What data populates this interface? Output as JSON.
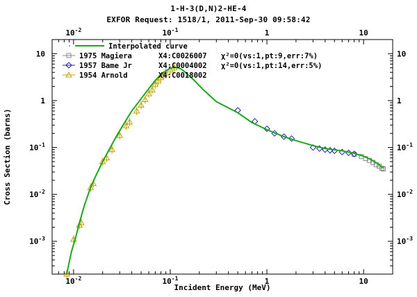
{
  "chart_data": {
    "type": "scatter",
    "title": "1-H-3(D,N)2-HE-4",
    "subtitle": "EXFOR Request: 1518/1, 2011-Sep-30 09:58:42",
    "xlabel": "Incident Energy (MeV)",
    "ylabel": "Cross Section (barns)",
    "x_scale": "log",
    "y_scale": "log",
    "xlim": [
      0.006,
      20
    ],
    "ylim": [
      0.0002,
      20
    ],
    "x_ticks": [
      {
        "value": 0.01,
        "base": "10",
        "exp": "-2"
      },
      {
        "value": 0.1,
        "base": "10",
        "exp": "-1"
      },
      {
        "value": 1,
        "base": "1",
        "exp": ""
      },
      {
        "value": 10,
        "base": "10",
        "exp": ""
      }
    ],
    "y_ticks": [
      {
        "value": 0.001,
        "base": "10",
        "exp": "-3"
      },
      {
        "value": 0.01,
        "base": "10",
        "exp": "-2"
      },
      {
        "value": 0.1,
        "base": "10",
        "exp": "-1"
      },
      {
        "value": 1,
        "base": "1",
        "exp": ""
      },
      {
        "value": 10,
        "base": "10",
        "exp": ""
      }
    ],
    "legend_position": "top-left",
    "series": [
      {
        "name": "Interpolated curve",
        "kind": "line",
        "color": "#1aa81a",
        "x": [
          0.0085,
          0.0095,
          0.0105,
          0.0115,
          0.013,
          0.015,
          0.017,
          0.02,
          0.024,
          0.028,
          0.034,
          0.04,
          0.05,
          0.06,
          0.07,
          0.08,
          0.09,
          0.1,
          0.11,
          0.12,
          0.13,
          0.15,
          0.18,
          0.22,
          0.3,
          0.5,
          0.7,
          1.0,
          1.5,
          2.0,
          3.0,
          4.0,
          6.0,
          8.0,
          10,
          12,
          14,
          16
        ],
        "y": [
          0.0002,
          0.0006,
          0.0012,
          0.0025,
          0.006,
          0.014,
          0.025,
          0.05,
          0.1,
          0.18,
          0.35,
          0.6,
          1.1,
          1.8,
          2.7,
          3.6,
          4.3,
          4.9,
          5.1,
          5.0,
          4.7,
          3.7,
          2.6,
          1.7,
          0.95,
          0.55,
          0.34,
          0.24,
          0.17,
          0.14,
          0.11,
          0.095,
          0.085,
          0.075,
          0.065,
          0.055,
          0.045,
          0.036
        ]
      },
      {
        "name": "1975 Magiera",
        "code": "X4:C0026007",
        "stats": "χ²=0(vs:1,pt:9,err:7%)",
        "marker": "square",
        "color": "#888888",
        "x": [
          8.0,
          9.5,
          10.5,
          11.5,
          12.5,
          13.5,
          14.5,
          15.5,
          16.0
        ],
        "y": [
          0.071,
          0.064,
          0.058,
          0.053,
          0.048,
          0.043,
          0.04,
          0.036,
          0.035
        ]
      },
      {
        "name": "1957 Bame Jr",
        "code": "X4:C0004002",
        "stats": "χ²=0(vs:1,pt:14,err:5%)",
        "marker": "diamond",
        "color": "#2222aa",
        "x": [
          0.5,
          0.75,
          1.0,
          1.2,
          1.5,
          1.8,
          3.0,
          3.5,
          4.0,
          4.5,
          5.0,
          6.0,
          7.0,
          8.0
        ],
        "y": [
          0.62,
          0.36,
          0.25,
          0.2,
          0.17,
          0.155,
          0.1,
          0.095,
          0.09,
          0.087,
          0.085,
          0.08,
          0.077,
          0.073
        ]
      },
      {
        "name": "1954 Arnold",
        "code": "X4:C0018002",
        "stats": "",
        "marker": "triangle",
        "color": "#c8a000",
        "x": [
          0.0085,
          0.01,
          0.0115,
          0.012,
          0.015,
          0.016,
          0.02,
          0.022,
          0.025,
          0.03,
          0.035,
          0.038,
          0.045,
          0.05,
          0.055,
          0.06,
          0.065,
          0.07,
          0.075,
          0.08,
          0.085,
          0.09,
          0.1,
          0.11
        ],
        "y": [
          0.0002,
          0.0011,
          0.0022,
          0.0025,
          0.014,
          0.017,
          0.05,
          0.06,
          0.09,
          0.18,
          0.29,
          0.35,
          0.6,
          0.8,
          1.05,
          1.4,
          1.7,
          2.2,
          2.6,
          3.1,
          3.4,
          3.9,
          4.5,
          5.0
        ]
      }
    ]
  }
}
